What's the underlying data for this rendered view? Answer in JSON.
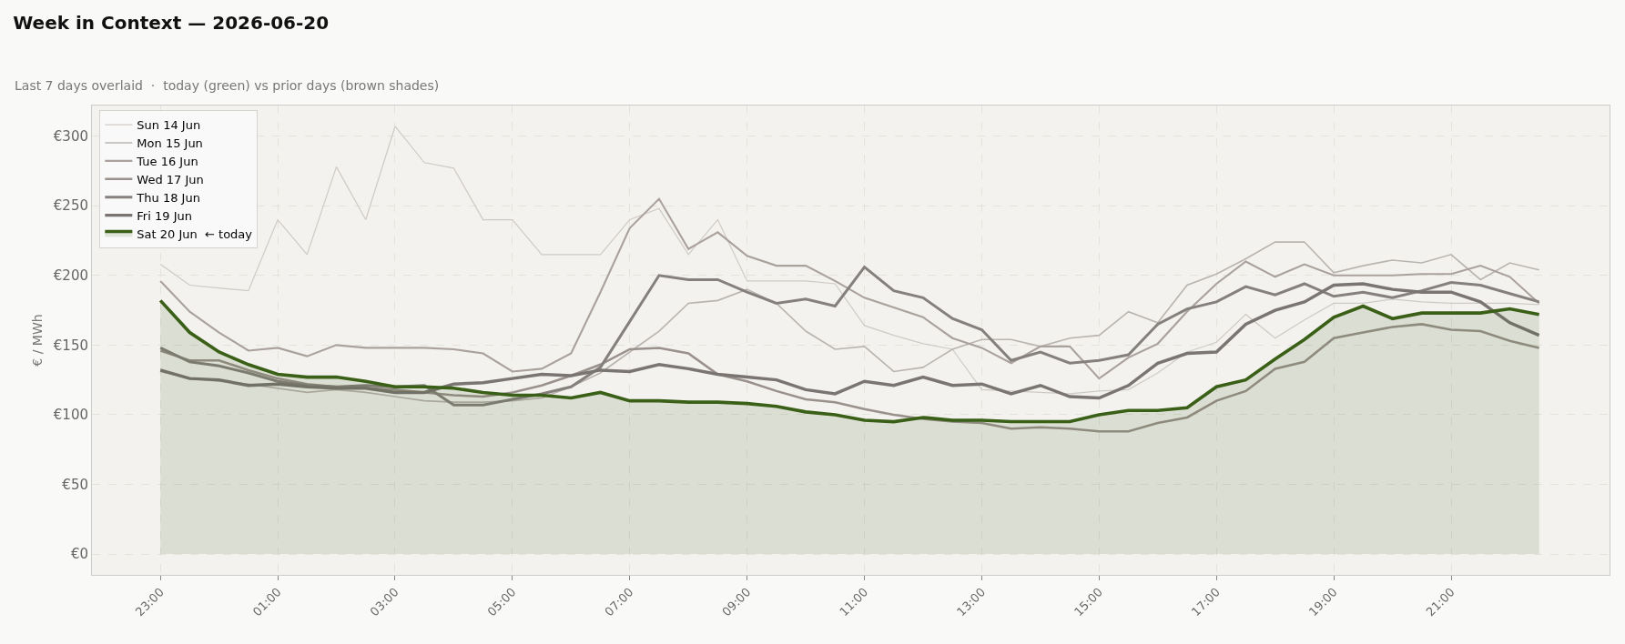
{
  "chart_data": {
    "type": "line",
    "title": "Week in Context — 2026-06-20",
    "subtitle": "Last 7 days overlaid  ·  today (green) vs prior days (brown shades)",
    "ylabel": "€ / MWh",
    "x": [
      "2026-06-19T23:00",
      "2026-06-19T23:30",
      "2026-06-20T00:00",
      "2026-06-20T00:30",
      "2026-06-20T01:00",
      "2026-06-20T01:30",
      "2026-06-20T02:00",
      "2026-06-20T02:30",
      "2026-06-20T03:00",
      "2026-06-20T03:30",
      "2026-06-20T04:00",
      "2026-06-20T04:30",
      "2026-06-20T05:00",
      "2026-06-20T05:30",
      "2026-06-20T06:00",
      "2026-06-20T06:30",
      "2026-06-20T07:00",
      "2026-06-20T07:30",
      "2026-06-20T08:00",
      "2026-06-20T08:30",
      "2026-06-20T09:00",
      "2026-06-20T09:30",
      "2026-06-20T10:00",
      "2026-06-20T10:30",
      "2026-06-20T11:00",
      "2026-06-20T11:30",
      "2026-06-20T12:00",
      "2026-06-20T12:30",
      "2026-06-20T13:00",
      "2026-06-20T13:30",
      "2026-06-20T14:00",
      "2026-06-20T14:30",
      "2026-06-20T15:00",
      "2026-06-20T15:30",
      "2026-06-20T16:00",
      "2026-06-20T16:30",
      "2026-06-20T17:00",
      "2026-06-20T17:30",
      "2026-06-20T18:00",
      "2026-06-20T18:30",
      "2026-06-20T19:00",
      "2026-06-20T19:30",
      "2026-06-20T20:00",
      "2026-06-20T20:30",
      "2026-06-20T21:00",
      "2026-06-20T21:30",
      "2026-06-20T22:00",
      "2026-06-20T22:30"
    ],
    "series": [
      {
        "name": "Sun 14 Jun",
        "color": "#cfcac6",
        "values": [
          208,
          193,
          191,
          189,
          240,
          215,
          278,
          240,
          307,
          281,
          277,
          240,
          240,
          215,
          215,
          215,
          240,
          248,
          215,
          240,
          196,
          196,
          196,
          194,
          164,
          157,
          151,
          147,
          118,
          117,
          116,
          115,
          117,
          118,
          130,
          145,
          152,
          172,
          155,
          168,
          180,
          180,
          183,
          181,
          180,
          180,
          180,
          179
        ]
      },
      {
        "name": "Mon 15 Jun",
        "color": "#bab4b0",
        "values": [
          131,
          126,
          124,
          122,
          119,
          116,
          118,
          116,
          113,
          110,
          109,
          109,
          110,
          112,
          120,
          130,
          145,
          160,
          180,
          182,
          190,
          180,
          160,
          147,
          149,
          131,
          134,
          147,
          154,
          154,
          149,
          155,
          157,
          174,
          166,
          193,
          201,
          212,
          224,
          224,
          202,
          207,
          211,
          209,
          215,
          197,
          209,
          204
        ]
      },
      {
        "name": "Tue 16 Jun",
        "color": "#aaa19d",
        "values": [
          196,
          174,
          159,
          146,
          148,
          142,
          150,
          148,
          148,
          148,
          147,
          144,
          131,
          133,
          144,
          188,
          234,
          255,
          219,
          231,
          214,
          207,
          207,
          196,
          184,
          177,
          170,
          155,
          148,
          137,
          149,
          149,
          126,
          141,
          151,
          174,
          194,
          210,
          199,
          208,
          200,
          200,
          200,
          201,
          201,
          207,
          199,
          180
        ]
      },
      {
        "name": "Wed 17 Jun",
        "color": "#9a918d",
        "values": [
          146,
          139,
          139,
          132,
          126,
          122,
          120,
          119,
          118,
          116,
          114,
          113,
          116,
          121,
          128,
          136,
          147,
          148,
          144,
          129,
          124,
          117,
          111,
          109,
          104,
          100,
          97,
          95,
          94,
          90,
          91,
          90,
          88,
          88,
          94,
          98,
          110,
          117,
          133,
          138,
          155,
          159,
          163,
          165,
          161,
          160,
          153,
          148
        ]
      },
      {
        "name": "Thu 18 Jun",
        "color": "#85807d",
        "values": [
          148,
          138,
          135,
          130,
          124,
          121,
          120,
          121,
          120,
          121,
          107,
          107,
          111,
          115,
          120,
          134,
          167,
          200,
          197,
          197,
          188,
          180,
          183,
          178,
          206,
          189,
          184,
          169,
          161,
          139,
          145,
          137,
          139,
          143,
          165,
          176,
          181,
          192,
          186,
          194,
          185,
          188,
          184,
          189,
          195,
          193,
          187,
          181
        ]
      },
      {
        "name": "Fri 19 Jun",
        "color": "#7a7572",
        "values": [
          132,
          126,
          125,
          121,
          122,
          120,
          119,
          119,
          116,
          116,
          122,
          123,
          126,
          129,
          128,
          132,
          131,
          136,
          133,
          129,
          127,
          125,
          118,
          115,
          124,
          121,
          127,
          121,
          122,
          115,
          121,
          113,
          112,
          121,
          137,
          144,
          145,
          165,
          175,
          181,
          193,
          194,
          190,
          188,
          188,
          181,
          166,
          157
        ]
      },
      {
        "name": "Sat 20 Jun  ← today",
        "color": "#3a5f17",
        "type": "area",
        "values": [
          182,
          159,
          145,
          136,
          129,
          127,
          127,
          124,
          120,
          120,
          119,
          116,
          114,
          114,
          112,
          116,
          110,
          110,
          109,
          109,
          108,
          106,
          102,
          100,
          96,
          95,
          98,
          96,
          96,
          95,
          95,
          95,
          100,
          103,
          103,
          105,
          120,
          125,
          140,
          154,
          170,
          178,
          169,
          173,
          173,
          173,
          176,
          172
        ]
      }
    ],
    "xlim": [
      "2026-06-19T21:50",
      "2026-06-20T23:42"
    ],
    "xticks": [
      {
        "value": "2026-06-19T23:00",
        "label": "23:00"
      },
      {
        "value": "2026-06-20T01:00",
        "label": "01:00"
      },
      {
        "value": "2026-06-20T03:00",
        "label": "03:00"
      },
      {
        "value": "2026-06-20T05:00",
        "label": "05:00"
      },
      {
        "value": "2026-06-20T07:00",
        "label": "07:00"
      },
      {
        "value": "2026-06-20T09:00",
        "label": "09:00"
      },
      {
        "value": "2026-06-20T11:00",
        "label": "11:00"
      },
      {
        "value": "2026-06-20T13:00",
        "label": "13:00"
      },
      {
        "value": "2026-06-20T15:00",
        "label": "15:00"
      },
      {
        "value": "2026-06-20T17:00",
        "label": "17:00"
      },
      {
        "value": "2026-06-20T19:00",
        "label": "19:00"
      },
      {
        "value": "2026-06-20T21:00",
        "label": "21:00"
      }
    ],
    "ylim": [
      -15,
      322
    ],
    "yticks": [
      {
        "value": 0,
        "label": "€0"
      },
      {
        "value": 50,
        "label": "€50"
      },
      {
        "value": 100,
        "label": "€100"
      },
      {
        "value": 150,
        "label": "€150"
      },
      {
        "value": 200,
        "label": "€200"
      },
      {
        "value": 250,
        "label": "€250"
      },
      {
        "value": 300,
        "label": "€300"
      }
    ],
    "grid": true,
    "legend": "top left",
    "line_style": "solid"
  }
}
